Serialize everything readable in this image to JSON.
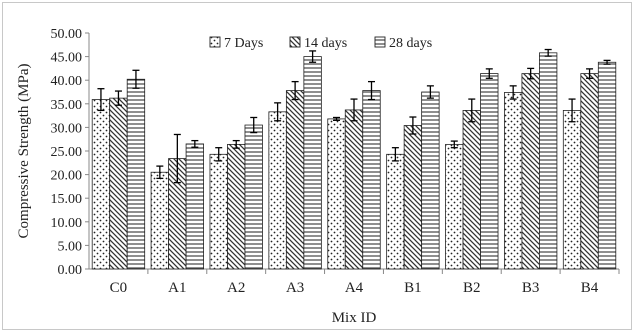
{
  "chart_data": {
    "type": "bar",
    "xlabel": "Mix ID",
    "ylabel": "Compressive Strength (MPa)",
    "ylim": [
      0,
      50
    ],
    "ytick_step": 5,
    "ytick_labels": [
      "0.00",
      "5.00",
      "10.00",
      "15.00",
      "20.00",
      "25.00",
      "30.00",
      "35.00",
      "40.00",
      "45.00",
      "50.00"
    ],
    "categories": [
      "C0",
      "A1",
      "A2",
      "A3",
      "A4",
      "B1",
      "B2",
      "B3",
      "B4"
    ],
    "grid": false,
    "legend_position": "top",
    "series": [
      {
        "name": "7 Days",
        "pattern": "dots",
        "values": [
          35.9,
          20.5,
          24.3,
          33.3,
          31.8,
          24.3,
          26.4,
          37.4,
          33.6
        ],
        "errors": [
          2.3,
          1.3,
          1.4,
          1.9,
          0.3,
          1.4,
          0.7,
          1.4,
          2.4
        ]
      },
      {
        "name": "14 days",
        "pattern": "diagonal",
        "values": [
          36.2,
          23.4,
          26.4,
          37.8,
          33.7,
          30.4,
          33.6,
          41.4,
          41.4
        ],
        "errors": [
          1.5,
          5.1,
          0.8,
          1.9,
          2.3,
          1.8,
          2.4,
          1.1,
          1.0
        ]
      },
      {
        "name": "28 days",
        "pattern": "horizontal",
        "values": [
          40.2,
          26.5,
          30.5,
          45.0,
          37.8,
          37.5,
          41.4,
          45.8,
          43.8
        ],
        "errors": [
          1.9,
          0.7,
          1.6,
          1.2,
          1.9,
          1.3,
          1.0,
          0.7,
          0.4
        ]
      }
    ]
  }
}
